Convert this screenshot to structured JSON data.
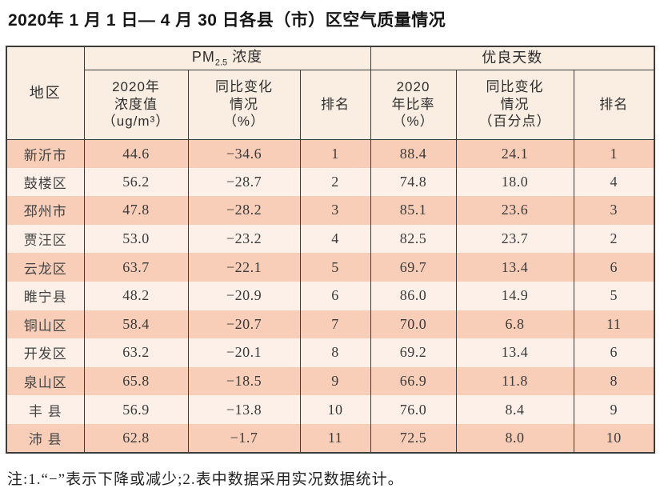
{
  "title": "2020年 1 月 1 日— 4 月 30 日各县（市）区空气质量情况",
  "table": {
    "header": {
      "region": "地区",
      "pm25_prefix": "PM",
      "pm25_sub": "2.5",
      "pm25_suffix": " 浓度",
      "good_days": "优良天数",
      "columns": [
        "2020年\n浓度值\n（ug/m³）",
        "同比变化\n情况\n（%）",
        "排名",
        "2020\n年比率\n（%）",
        "同比变化\n情况\n（百分点）",
        "排名"
      ]
    },
    "rows": [
      {
        "region": "新沂市",
        "pm25_value": "44.6",
        "pm25_change": "−34.6",
        "pm25_rank": "1",
        "good_ratio": "88.4",
        "good_change": "24.1",
        "good_rank": "1"
      },
      {
        "region": "鼓楼区",
        "pm25_value": "56.2",
        "pm25_change": "−28.7",
        "pm25_rank": "2",
        "good_ratio": "74.8",
        "good_change": "18.0",
        "good_rank": "4"
      },
      {
        "region": "邳州市",
        "pm25_value": "47.8",
        "pm25_change": "−28.2",
        "pm25_rank": "3",
        "good_ratio": "85.1",
        "good_change": "23.6",
        "good_rank": "3"
      },
      {
        "region": "贾汪区",
        "pm25_value": "53.0",
        "pm25_change": "−23.2",
        "pm25_rank": "4",
        "good_ratio": "82.5",
        "good_change": "23.7",
        "good_rank": "2"
      },
      {
        "region": "云龙区",
        "pm25_value": "63.7",
        "pm25_change": "−22.1",
        "pm25_rank": "5",
        "good_ratio": "69.7",
        "good_change": "13.4",
        "good_rank": "6"
      },
      {
        "region": "睢宁县",
        "pm25_value": "48.2",
        "pm25_change": "−20.9",
        "pm25_rank": "6",
        "good_ratio": "86.0",
        "good_change": "14.9",
        "good_rank": "5"
      },
      {
        "region": "铜山区",
        "pm25_value": "58.4",
        "pm25_change": "−20.7",
        "pm25_rank": "7",
        "good_ratio": "70.0",
        "good_change": "6.8",
        "good_rank": "11"
      },
      {
        "region": "开发区",
        "pm25_value": "63.2",
        "pm25_change": "−20.1",
        "pm25_rank": "8",
        "good_ratio": "69.2",
        "good_change": "13.4",
        "good_rank": "6"
      },
      {
        "region": "泉山区",
        "pm25_value": "65.8",
        "pm25_change": "−18.5",
        "pm25_rank": "9",
        "good_ratio": "66.9",
        "good_change": "11.8",
        "good_rank": "8"
      },
      {
        "region": "丰 县",
        "pm25_value": "56.9",
        "pm25_change": "−13.8",
        "pm25_rank": "10",
        "good_ratio": "76.0",
        "good_change": "8.4",
        "good_rank": "9"
      },
      {
        "region": "沛 县",
        "pm25_value": "62.8",
        "pm25_change": "−1.7",
        "pm25_rank": "11",
        "good_ratio": "72.5",
        "good_change": "8.0",
        "good_rank": "10"
      }
    ]
  },
  "footnote": "注:1.“−”表示下降或减少;2.表中数据采用实况数据统计。",
  "colors": {
    "row_dark": "#f8ceb8",
    "row_light": "#fcf0e9",
    "header_bg": "#faeee3",
    "border": "#3c3c3c"
  }
}
